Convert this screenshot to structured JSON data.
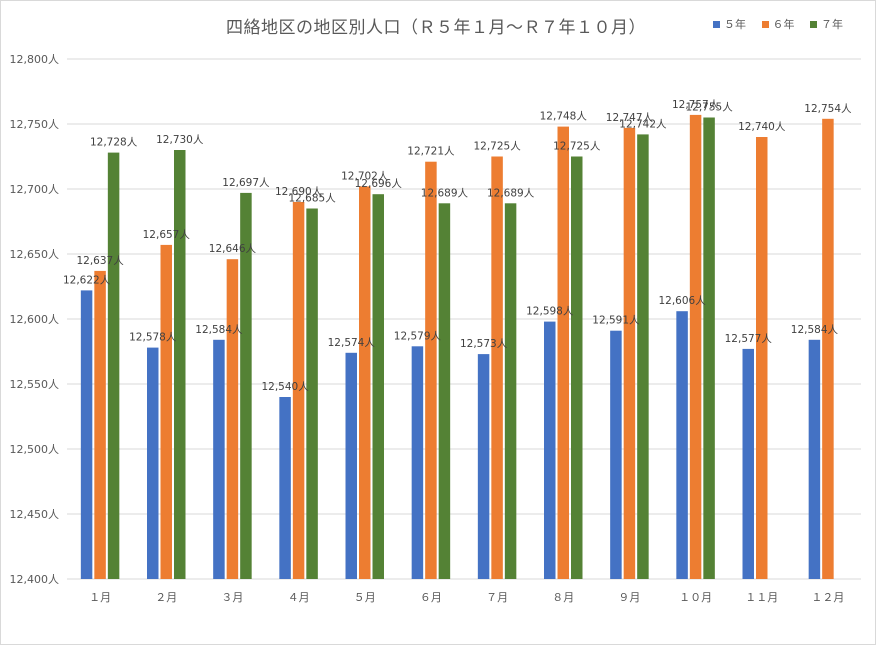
{
  "chart_data": {
    "type": "bar",
    "title": "四絡地区の地区別人口（Ｒ５年１月～Ｒ７年１０月）",
    "xlabel": "",
    "ylabel": "",
    "ylim": [
      12400,
      12800
    ],
    "y_ticks": [
      "12,400人",
      "12,450人",
      "12,500人",
      "12,550人",
      "12,600人",
      "12,650人",
      "12,700人",
      "12,750人",
      "12,800人"
    ],
    "y_tick_values": [
      12400,
      12450,
      12500,
      12550,
      12600,
      12650,
      12700,
      12750,
      12800
    ],
    "grid": true,
    "legend_position": "top-right",
    "categories": [
      "１月",
      "２月",
      "３月",
      "４月",
      "５月",
      "６月",
      "７月",
      "８月",
      "９月",
      "１０月",
      "１１月",
      "１２月"
    ],
    "series": [
      {
        "name": "５年",
        "color": "#4472c4",
        "values": [
          12622,
          12578,
          12584,
          12540,
          12574,
          12579,
          12573,
          12598,
          12591,
          12606,
          12577,
          12584
        ],
        "labels": [
          "12,622人",
          "12,578人",
          "12,584人",
          "12,540人",
          "12,574人",
          "12,579人",
          "12,573人",
          "12,598人",
          "12,591人",
          "12,606人",
          "12,577人",
          "12,584人"
        ]
      },
      {
        "name": "６年",
        "color": "#ed7d31",
        "values": [
          12637,
          12657,
          12646,
          12690,
          12702,
          12721,
          12725,
          12748,
          12747,
          12757,
          12740,
          12754
        ],
        "labels": [
          "12,637人",
          "12,657人",
          "12,646人",
          "12,690人",
          "12,702人",
          "12,721人",
          "12,725人",
          "12,748人",
          "12,747人",
          "12,757人",
          "12,740人",
          "12,754人"
        ]
      },
      {
        "name": "７年",
        "color": "#548235",
        "values": [
          12728,
          12730,
          12697,
          12685,
          12696,
          12689,
          12689,
          12725,
          12742,
          12755,
          null,
          null
        ],
        "labels": [
          "12,728人",
          "12,730人",
          "12,697人",
          "12,685人",
          "12,696人",
          "12,689人",
          "12,689人",
          "12,725人",
          "12,742人",
          "12,755人",
          null,
          null
        ]
      }
    ]
  }
}
